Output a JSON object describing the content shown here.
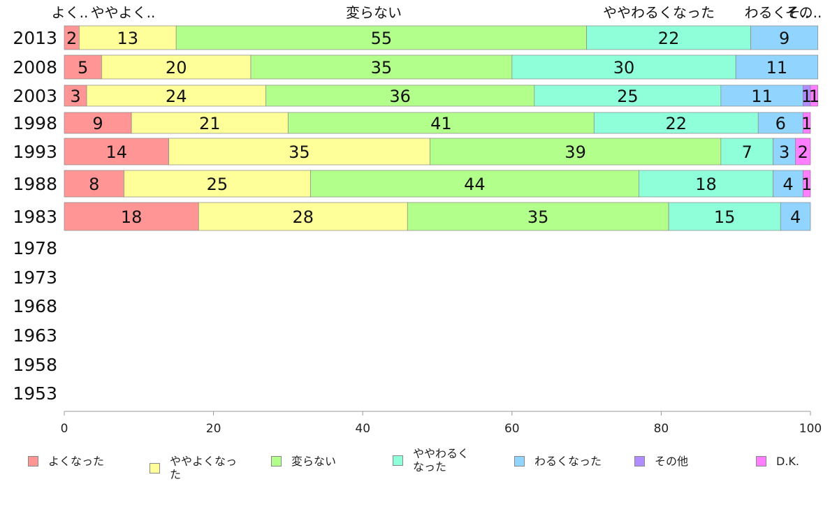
{
  "chart_data": {
    "type": "bar",
    "orientation": "horizontal",
    "stacked": true,
    "categories": [
      "2013",
      "2008",
      "2003",
      "1998",
      "1993",
      "1988",
      "1983",
      "1978",
      "1973",
      "1968",
      "1963",
      "1958",
      "1953"
    ],
    "series": [
      {
        "name": "よくなった",
        "color": "#ff9595",
        "values": [
          2,
          5,
          3,
          9,
          14,
          8,
          18,
          null,
          null,
          null,
          null,
          null,
          null
        ]
      },
      {
        "name": "ややよくなった",
        "color": "#ffff99",
        "values": [
          13,
          20,
          24,
          21,
          35,
          25,
          28,
          null,
          null,
          null,
          null,
          null,
          null
        ]
      },
      {
        "name": "変らない",
        "color": "#b3ff8c",
        "values": [
          55,
          35,
          36,
          41,
          39,
          44,
          35,
          null,
          null,
          null,
          null,
          null,
          null
        ]
      },
      {
        "name": "ややわるくなった",
        "color": "#8effd8",
        "values": [
          22,
          30,
          25,
          22,
          7,
          18,
          15,
          null,
          null,
          null,
          null,
          null,
          null
        ]
      },
      {
        "name": "わるくなった",
        "color": "#91d5ff",
        "values": [
          9,
          11,
          11,
          6,
          3,
          4,
          4,
          null,
          null,
          null,
          null,
          null,
          null
        ]
      },
      {
        "name": "その他",
        "color": "#b08cff",
        "values": [
          0,
          0,
          1,
          0,
          0,
          0,
          0,
          null,
          null,
          null,
          null,
          null,
          null
        ]
      },
      {
        "name": "D.K.",
        "color": "#ff7dff",
        "values": [
          0,
          0,
          1,
          1,
          2,
          1,
          0,
          null,
          null,
          null,
          null,
          null,
          null
        ]
      }
    ],
    "top_labels": [
      "よく..",
      "ややよく..",
      "変らない",
      "ややわるくなった",
      "わるくそ..",
      "その.."
    ],
    "xlim": [
      0,
      100
    ],
    "xticks": [
      "0",
      "20",
      "40",
      "60",
      "80",
      "100"
    ],
    "grid": false,
    "legend_position": "bottom",
    "legend": [
      {
        "label": "よくなった",
        "color": "#ff9595"
      },
      {
        "label": "ややよくなった",
        "color": "#ffff99"
      },
      {
        "label": "変らない",
        "color": "#b3ff8c"
      },
      {
        "label": "ややわるく\nなった",
        "color": "#8effd8"
      },
      {
        "label": "わるくなった",
        "color": "#91d5ff"
      },
      {
        "label": "その他",
        "color": "#b08cff"
      },
      {
        "label": "D.K.",
        "color": "#ff7dff"
      }
    ]
  }
}
